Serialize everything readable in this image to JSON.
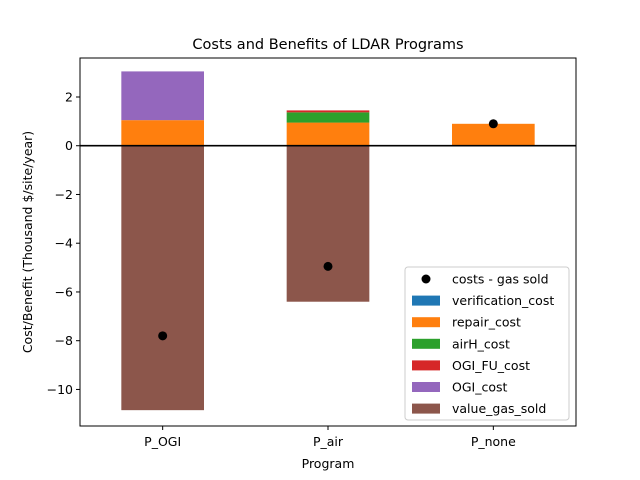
{
  "chart_data": {
    "type": "bar",
    "stacked": true,
    "title": "Costs and Benefits of LDAR Programs",
    "xlabel": "Program",
    "ylabel": "Cost/Benefit (Thousand $/site/year)",
    "categories": [
      "P_OGI",
      "P_air",
      "P_none"
    ],
    "ylim": [
      -11.5,
      3.6
    ],
    "yticks": [
      -10,
      -8,
      -6,
      -4,
      -2,
      0,
      2
    ],
    "ytick_labels": [
      "−10",
      "−8",
      "−6",
      "−4",
      "−2",
      "0",
      "2"
    ],
    "grid": false,
    "legend_position": "lower-right",
    "series": [
      {
        "name": "verification_cost",
        "color": "#1f77b4",
        "values": [
          0.0,
          0.0,
          0.0
        ]
      },
      {
        "name": "repair_cost",
        "color": "#ff7f0e",
        "values": [
          1.05,
          0.95,
          0.9
        ]
      },
      {
        "name": "airH_cost",
        "color": "#2ca02c",
        "values": [
          0.0,
          0.42,
          0.0
        ]
      },
      {
        "name": "OGI_FU_cost",
        "color": "#d62728",
        "values": [
          0.0,
          0.08,
          0.0
        ]
      },
      {
        "name": "OGI_cost",
        "color": "#9467bd",
        "values": [
          2.0,
          0.0,
          0.0
        ]
      },
      {
        "name": "value_gas_sold",
        "color": "#8c564b",
        "values": [
          -10.85,
          -6.4,
          0.0
        ]
      }
    ],
    "net_series": {
      "name": "costs - gas sold",
      "color": "#000000",
      "values": [
        -7.8,
        -4.95,
        0.9
      ]
    }
  }
}
